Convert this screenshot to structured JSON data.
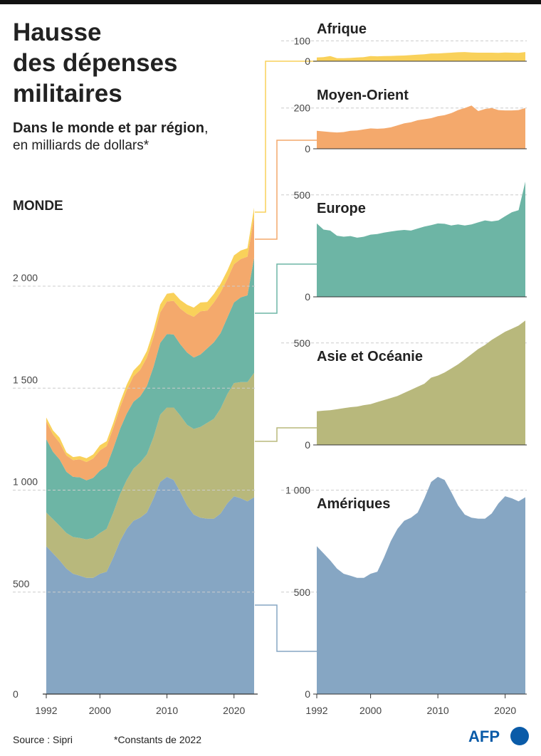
{
  "chart_data": {
    "type": "area",
    "stacked": true,
    "title": [
      "Hausse",
      "des dépenses",
      "militaires"
    ],
    "subtitle": [
      "Dans le monde et par région",
      ",",
      "en milliards de dollars*"
    ],
    "panel_label": "MONDE",
    "x": [
      1992,
      1993,
      1994,
      1995,
      1996,
      1997,
      1998,
      1999,
      2000,
      2001,
      2002,
      2003,
      2004,
      2005,
      2006,
      2007,
      2008,
      2009,
      2010,
      2011,
      2012,
      2013,
      2014,
      2015,
      2016,
      2017,
      2018,
      2019,
      2020,
      2021,
      2022,
      2023
    ],
    "xlim": [
      1992,
      2023
    ],
    "xticks": [
      1992,
      2000,
      2010,
      2020
    ],
    "ylim": [
      0,
      2400
    ],
    "yticks": [
      0,
      500,
      {
        "value": 1000,
        "label": "1 000"
      },
      {
        "value": 1500,
        "label": "1 500"
      },
      {
        "value": 2000,
        "label": "2 000"
      }
    ],
    "grid": true,
    "series": [
      {
        "name": "Amériques",
        "color": "#86a6c3",
        "ylim": [
          0,
          1100
        ],
        "yticks": [
          0,
          500,
          {
            "value": 1000,
            "label": "1 000"
          }
        ],
        "values": [
          725,
          690,
          655,
          615,
          590,
          580,
          570,
          570,
          590,
          600,
          670,
          750,
          810,
          850,
          865,
          890,
          960,
          1040,
          1065,
          1050,
          990,
          925,
          880,
          865,
          860,
          860,
          885,
          935,
          970,
          960,
          945,
          965
        ]
      },
      {
        "name": "Asie et Océanie",
        "color": "#b8b87c",
        "ylim": [
          0,
          620
        ],
        "yticks": [
          0,
          500
        ],
        "values": [
          165,
          168,
          170,
          175,
          180,
          185,
          188,
          195,
          200,
          210,
          220,
          230,
          240,
          255,
          270,
          285,
          300,
          330,
          340,
          355,
          375,
          395,
          420,
          445,
          470,
          490,
          515,
          535,
          555,
          570,
          585,
          610
        ]
      },
      {
        "name": "Europe",
        "color": "#6db5a5",
        "ylim": [
          0,
          600
        ],
        "yticks": [
          0,
          500
        ],
        "values": [
          360,
          330,
          325,
          300,
          295,
          298,
          290,
          295,
          305,
          308,
          315,
          320,
          325,
          328,
          325,
          335,
          345,
          352,
          360,
          358,
          350,
          355,
          350,
          355,
          365,
          375,
          370,
          375,
          395,
          415,
          425,
          565
        ]
      },
      {
        "name": "Moyen-Orient",
        "color": "#f4a96c",
        "ylim": [
          0,
          230
        ],
        "yticks": [
          0,
          200
        ],
        "values": [
          88,
          85,
          82,
          80,
          82,
          88,
          90,
          95,
          100,
          98,
          100,
          105,
          115,
          125,
          130,
          140,
          145,
          150,
          160,
          165,
          175,
          190,
          200,
          212,
          185,
          195,
          200,
          190,
          188,
          188,
          190,
          200
        ]
      },
      {
        "name": "Afrique",
        "color": "#f9d15a",
        "ylim": [
          0,
          110
        ],
        "yticks": [
          0,
          100
        ],
        "values": [
          18,
          20,
          25,
          15,
          15,
          16,
          18,
          20,
          25,
          24,
          25,
          26,
          27,
          28,
          30,
          32,
          34,
          38,
          38,
          40,
          42,
          44,
          45,
          43,
          42,
          42,
          42,
          41,
          43,
          42,
          41,
          45
        ]
      }
    ],
    "source": "Source : Sipri",
    "note": "*Constants de 2022",
    "logo": "AFP"
  }
}
